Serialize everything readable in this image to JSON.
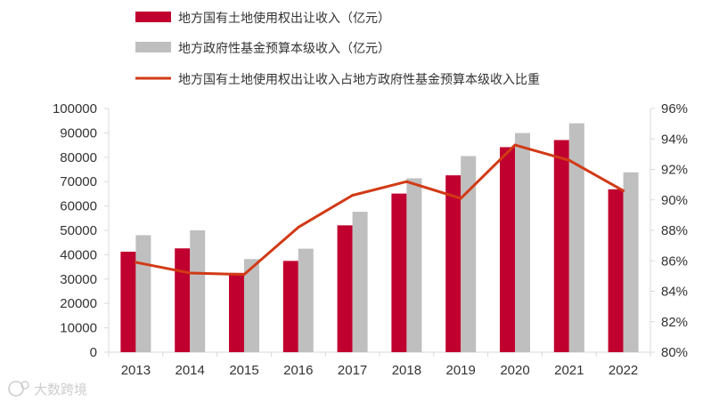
{
  "chart_data": {
    "type": "bar+line",
    "categories": [
      "2013",
      "2014",
      "2015",
      "2016",
      "2017",
      "2018",
      "2019",
      "2020",
      "2021",
      "2022"
    ],
    "series": [
      {
        "name": "地方国有土地使用权出让收入（亿元）",
        "type": "bar",
        "axis": "left",
        "color": "#c0002f",
        "values": [
          41250,
          42606,
          32547,
          37457,
          52059,
          65096,
          72584,
          84142,
          87051,
          66854
        ]
      },
      {
        "name": "地方政府性基金预算本级收入（亿元）",
        "type": "bar",
        "axis": "left",
        "color": "#bfbfbf",
        "values": [
          48007,
          50005,
          38218,
          42465,
          57637,
          71372,
          80476,
          89938,
          93936,
          73806
        ]
      },
      {
        "name": "地方国有土地使用权出让收入占地方政府性基金预算本级收入比重",
        "type": "line",
        "axis": "right",
        "color": "#d13a16",
        "values": [
          85.9,
          85.2,
          85.1,
          88.2,
          90.3,
          91.2,
          90.1,
          93.6,
          92.6,
          90.6
        ]
      }
    ],
    "y_left": {
      "min": 0,
      "max": 100000,
      "step": 10000,
      "tick_labels": [
        "0",
        "10000",
        "20000",
        "30000",
        "40000",
        "50000",
        "60000",
        "70000",
        "80000",
        "90000",
        "100000"
      ]
    },
    "y_right": {
      "min": 80,
      "max": 96,
      "step": 2,
      "tick_labels": [
        "80%",
        "82%",
        "84%",
        "86%",
        "88%",
        "90%",
        "92%",
        "94%",
        "96%"
      ]
    },
    "legend_position": "top-left",
    "grid": false
  },
  "watermark": {
    "text": "大数跨境",
    "icon": "logo-icon"
  }
}
